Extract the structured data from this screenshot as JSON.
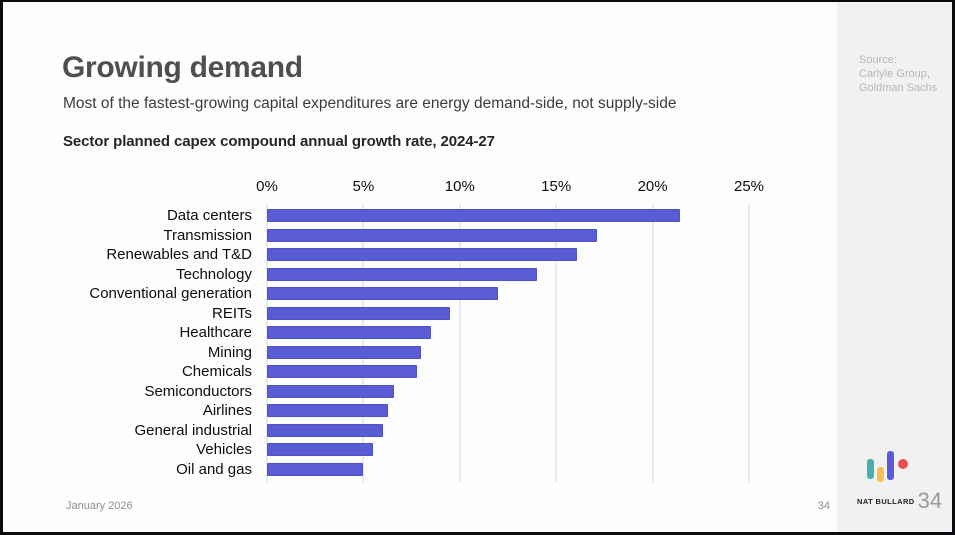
{
  "slide": {
    "title": "Growing demand",
    "subtitle": "Most of the fastest-growing capital expenditures are energy demand-side, not supply-side",
    "chart_heading": "Sector planned capex compound annual growth rate, 2024-27",
    "footer_date": "January 2026",
    "page_number": "34"
  },
  "sidebar": {
    "source_lines": [
      "Source:",
      "Carlyle Group,",
      "Goldman Sachs"
    ],
    "logo_name": "NAT BULLARD",
    "logo_page_number": "34"
  },
  "chart_data": {
    "type": "bar",
    "orientation": "horizontal",
    "title": "Sector planned capex compound annual growth rate, 2024-27",
    "categories": [
      "Data centers",
      "Transmission",
      "Renewables and T&D",
      "Technology",
      "Conventional generation",
      "REITs",
      "Healthcare",
      "Mining",
      "Chemicals",
      "Semiconductors",
      "Airlines",
      "General industrial",
      "Vehicles",
      "Oil and gas"
    ],
    "values": [
      21.4,
      17.1,
      16.1,
      14.0,
      12.0,
      9.5,
      8.5,
      8.0,
      7.8,
      6.6,
      6.3,
      6.0,
      5.5,
      5.0
    ],
    "unit": "%",
    "xlim": [
      0,
      25
    ],
    "x_ticks": [
      "0%",
      "5%",
      "10%",
      "15%",
      "20%",
      "25%"
    ],
    "grid": true,
    "legend": "none",
    "bar_color": "#5a5cd6"
  },
  "colors": {
    "bar": "#5a5cd6",
    "gridline": "#d8d8d8",
    "sidebar_bg": "#f1f1f2",
    "logo_teal": "#45b0ac",
    "logo_yellow": "#f6c050",
    "logo_indigo": "#5b5bd7",
    "logo_red": "#e8504f"
  }
}
